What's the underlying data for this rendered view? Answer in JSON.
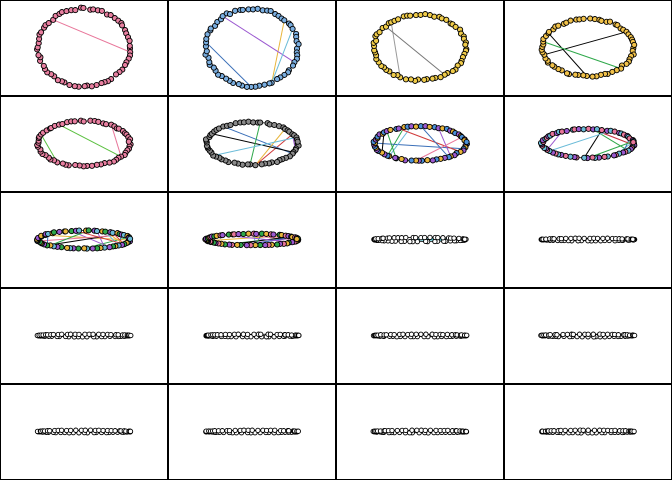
{
  "figure": {
    "rows": 5,
    "cols": 4,
    "panels": [
      {
        "id": 1,
        "ry": 0.95,
        "nodes": 64,
        "palette": [
          "#e8769a"
        ],
        "chords": 1,
        "chord_colors": [
          "#e8769a"
        ],
        "ring_color": "#c8506e",
        "node_fill": "#e87fa0"
      },
      {
        "id": 2,
        "ry": 0.95,
        "nodes": 64,
        "palette": [
          "#6a9fd8"
        ],
        "chords": 4,
        "chord_colors": [
          "#e8b53a",
          "#9b59d0",
          "#6abbd8",
          "#3a6fb8"
        ],
        "ring_color": "#3a6fb8",
        "node_fill": "#7aaee0"
      },
      {
        "id": 3,
        "ry": 0.8,
        "nodes": 64,
        "palette": [
          "#e8c23a"
        ],
        "chords": 2,
        "chord_colors": [
          "#999999",
          "#777777"
        ],
        "ring_color": "#b08a10",
        "node_fill": "#f0cc4a"
      },
      {
        "id": 4,
        "ry": 0.7,
        "nodes": 64,
        "palette": [
          "#f0c040"
        ],
        "chords": 3,
        "chord_colors": [
          "#000000",
          "#000000",
          "#2ea84a"
        ],
        "ring_color": "#222222",
        "node_fill": "#f2c24a"
      },
      {
        "id": 5,
        "ry": 0.55,
        "nodes": 64,
        "palette": [
          "#e8769a"
        ],
        "chords": 3,
        "chord_colors": [
          "#5bc040",
          "#5bc040",
          "#e8769a"
        ],
        "ring_color": "#c8506e",
        "node_fill": "#e87fa0"
      },
      {
        "id": 6,
        "ry": 0.52,
        "nodes": 64,
        "palette": [
          "#9a9a9a"
        ],
        "chords": 8,
        "chord_colors": [
          "#d03a3a",
          "#2ea84a",
          "#3a6fb8",
          "#e8b53a",
          "#000000",
          "#9b59d0",
          "#2ea84a",
          "#6abbd8"
        ],
        "ring_color": "#111111",
        "node_fill": "#8a8a8a"
      },
      {
        "id": 7,
        "ry": 0.42,
        "nodes": 64,
        "palette": [
          "#4a8fd8",
          "#9b59d0",
          "#e8b53a"
        ],
        "chords": 10,
        "chord_colors": [
          "#2ea84a",
          "#3a6fb8",
          "#e8b53a",
          "#6abbd8",
          "#d03a3a",
          "#000000",
          "#9b59d0",
          "#e8769a",
          "#3a6fb8",
          "#2ea84a"
        ],
        "ring_color": "#111111",
        "node_fill": "#6aa0e0"
      },
      {
        "id": 8,
        "ry": 0.35,
        "nodes": 64,
        "palette": [
          "#e8769a",
          "#9b59d0",
          "#6abbd8"
        ],
        "chords": 12,
        "chord_colors": [
          "#d03a3a",
          "#6abbd8",
          "#9b59d0",
          "#e8b53a",
          "#2ea84a",
          "#000000",
          "#e8769a",
          "#3a6fb8",
          "#d03a3a",
          "#2ea84a",
          "#9b59d0",
          "#6abbd8"
        ],
        "ring_color": "#111111",
        "node_fill": "#c080d0"
      },
      {
        "id": 9,
        "ry": 0.22,
        "nodes": 64,
        "palette": [
          "#e8b53a",
          "#2ea84a",
          "#9b59d0",
          "#6abbd8"
        ],
        "chords": 14,
        "chord_colors": [
          "#9b59d0",
          "#2ea84a",
          "#e8b53a",
          "#3a6fb8",
          "#d03a3a",
          "#6abbd8",
          "#000000",
          "#e8769a",
          "#2ea84a",
          "#9b59d0",
          "#e8b53a",
          "#3a6fb8",
          "#6abbd8",
          "#d03a3a"
        ],
        "ring_color": "#111111",
        "node_fill": "#d0a040"
      },
      {
        "id": 10,
        "ry": 0.14,
        "nodes": 64,
        "palette": [
          "#e8769a",
          "#9b59d0",
          "#2ea84a",
          "#e8b53a"
        ],
        "chords": 10,
        "chord_colors": [
          "#9b59d0",
          "#2ea84a",
          "#e8b53a",
          "#6abbd8",
          "#d03a3a",
          "#e8769a",
          "#3a6fb8",
          "#000000",
          "#2ea84a",
          "#9b59d0"
        ],
        "ring_color": "#111111",
        "node_fill": "#e090b0"
      },
      {
        "id": 11,
        "ry": 0.05,
        "nodes": 60,
        "palette": [
          "#ffffff"
        ],
        "chords": 0,
        "chord_colors": [],
        "ring_color": "#111111",
        "node_fill": "#ffffff",
        "accent_line": "#45c0d0"
      },
      {
        "id": 12,
        "ry": 0.03,
        "nodes": 60,
        "palette": [
          "#ffffff"
        ],
        "chords": 0,
        "chord_colors": [],
        "ring_color": "#111111",
        "node_fill": "#ffffff"
      },
      {
        "id": 13,
        "ry": 0.03,
        "nodes": 60,
        "palette": [
          "#ffffff"
        ],
        "chords": 0,
        "chord_colors": [],
        "ring_color": "#111111",
        "node_fill": "#ffffff"
      },
      {
        "id": 14,
        "ry": 0.03,
        "nodes": 60,
        "palette": [
          "#ffffff"
        ],
        "chords": 0,
        "chord_colors": [],
        "ring_color": "#111111",
        "node_fill": "#ffffff"
      },
      {
        "id": 15,
        "ry": 0.03,
        "nodes": 60,
        "palette": [
          "#ffffff"
        ],
        "chords": 0,
        "chord_colors": [],
        "ring_color": "#111111",
        "node_fill": "#ffffff"
      },
      {
        "id": 16,
        "ry": 0.03,
        "nodes": 60,
        "palette": [
          "#ffffff"
        ],
        "chords": 0,
        "chord_colors": [],
        "ring_color": "#111111",
        "node_fill": "#ffffff"
      },
      {
        "id": 17,
        "ry": 0.03,
        "nodes": 60,
        "palette": [
          "#ffffff"
        ],
        "chords": 0,
        "chord_colors": [],
        "ring_color": "#111111",
        "node_fill": "#ffffff"
      },
      {
        "id": 18,
        "ry": 0.03,
        "nodes": 60,
        "palette": [
          "#ffffff"
        ],
        "chords": 0,
        "chord_colors": [],
        "ring_color": "#111111",
        "node_fill": "#ffffff"
      },
      {
        "id": 19,
        "ry": 0.03,
        "nodes": 60,
        "palette": [
          "#ffffff"
        ],
        "chords": 0,
        "chord_colors": [],
        "ring_color": "#111111",
        "node_fill": "#ffffff"
      },
      {
        "id": 20,
        "ry": 0.03,
        "nodes": 60,
        "palette": [
          "#ffffff"
        ],
        "chords": 0,
        "chord_colors": [],
        "ring_color": "#111111",
        "node_fill": "#ffffff"
      }
    ]
  }
}
